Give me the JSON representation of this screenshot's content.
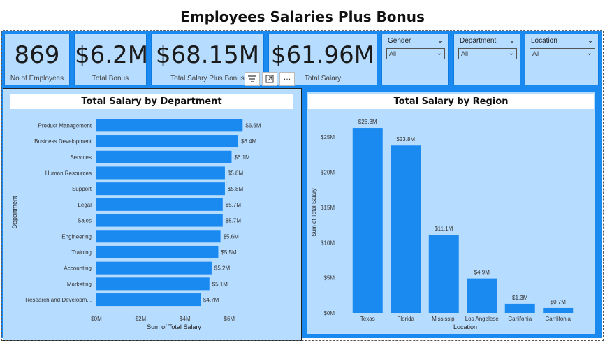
{
  "report": {
    "title": "Employees Salaries Plus Bonus"
  },
  "kpis": [
    {
      "value": "869",
      "label": "No of Employees"
    },
    {
      "value": "$6.2M",
      "label": "Total Bonus"
    },
    {
      "value": "$68.15M",
      "label": "Total Salary Plus Bonus"
    },
    {
      "value": "$61.96M",
      "label": "Total Salary"
    }
  ],
  "slicers": [
    {
      "title": "Gender",
      "selected": "All"
    },
    {
      "title": "Department",
      "selected": "All"
    },
    {
      "title": "Location",
      "selected": "All"
    }
  ],
  "toolbar": {
    "filter_icon": "filter-icon",
    "focus_icon": "focus-mode-icon",
    "more_label": "···"
  },
  "chart_data": [
    {
      "type": "bar",
      "orientation": "horizontal",
      "title": "Total Salary by Department",
      "xlabel": "Sum of Total Salary",
      "ylabel": "Department",
      "categories": [
        "Product Management",
        "Business Development",
        "Services",
        "Human Resources",
        "Support",
        "Legal",
        "Sales",
        "Engineering",
        "Training",
        "Accounting",
        "Marketing",
        "Research and Developm..."
      ],
      "values": [
        6.6,
        6.4,
        6.1,
        5.8,
        5.8,
        5.7,
        5.7,
        5.6,
        5.5,
        5.2,
        5.1,
        4.7
      ],
      "data_labels": [
        "$6.6M",
        "$6.4M",
        "$6.1M",
        "$5.8M",
        "$5.8M",
        "$5.7M",
        "$5.7M",
        "$5.6M",
        "$5.5M",
        "$5.2M",
        "$5.1M",
        "$4.7M"
      ],
      "xticks": [
        "$0M",
        "$2M",
        "$4M",
        "$6M"
      ],
      "xtick_values": [
        0,
        2,
        4,
        6
      ],
      "xlim": [
        0,
        7.0
      ],
      "color": "#1a8af0"
    },
    {
      "type": "bar",
      "title": "Total Salary by Region",
      "xlabel": "Location",
      "ylabel": "Sum of Total Salary",
      "categories": [
        "Texas",
        "Florida",
        "Mississipi",
        "Los Angelese",
        "Carlifonia",
        "Carrlifonia"
      ],
      "values": [
        26.3,
        23.8,
        11.1,
        4.9,
        1.3,
        0.7
      ],
      "data_labels": [
        "$26.3M",
        "$23.8M",
        "$11.1M",
        "$4.9M",
        "$1.3M",
        "$0.7M"
      ],
      "yticks": [
        "$0M",
        "$5M",
        "$10M",
        "$15M",
        "$20M",
        "$25M"
      ],
      "ytick_values": [
        0,
        5,
        10,
        15,
        20,
        25
      ],
      "ylim": [
        0,
        27
      ],
      "color": "#1a8af0"
    }
  ]
}
